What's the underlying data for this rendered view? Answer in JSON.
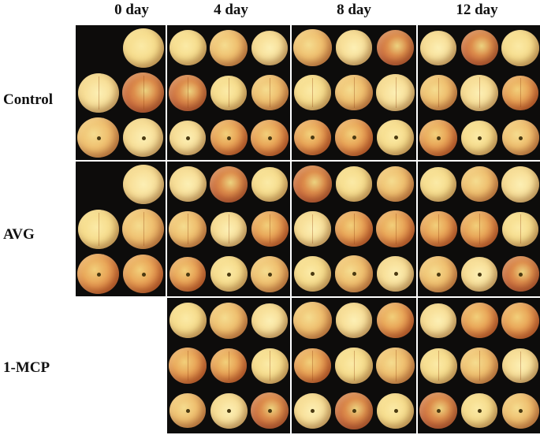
{
  "columns": [
    "0 day",
    "4 day",
    "8 day",
    "12 day"
  ],
  "rows": [
    "Control",
    "AVG",
    "1-MCP"
  ]
}
